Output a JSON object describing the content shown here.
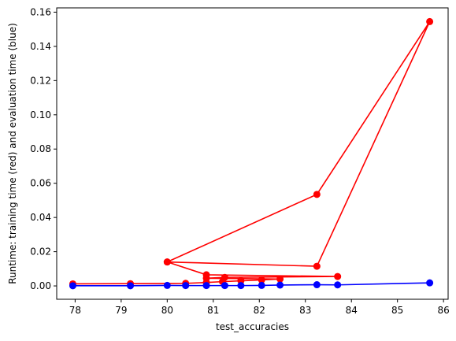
{
  "chart_data": {
    "type": "line",
    "xlabel": "test_accuracies",
    "ylabel": "Runtime: training time (red) and evaluation time (blue)",
    "xlim": [
      77.6,
      86.1
    ],
    "ylim": [
      -0.0078,
      0.1625
    ],
    "x_ticks": [
      78,
      79,
      80,
      81,
      82,
      83,
      84,
      85,
      86
    ],
    "x_tick_labels": [
      "78",
      "79",
      "80",
      "81",
      "82",
      "83",
      "84",
      "85",
      "86"
    ],
    "y_ticks": [
      0.0,
      0.02,
      0.04,
      0.06,
      0.08,
      0.1,
      0.12,
      0.14,
      0.16
    ],
    "y_tick_labels": [
      "0.00",
      "0.02",
      "0.04",
      "0.06",
      "0.08",
      "0.10",
      "0.12",
      "0.14",
      "0.16"
    ],
    "grid": false,
    "series": [
      {
        "color": "#ff0000",
        "x": [
          77.95,
          79.2,
          80.4,
          80.85,
          81.2,
          81.6,
          82.05,
          82.45,
          80.85,
          81.25,
          83.7,
          80.85,
          80.0,
          83.25,
          85.7,
          83.25,
          80.0
        ],
        "y": [
          0.0012,
          0.0013,
          0.0015,
          0.002,
          0.0025,
          0.003,
          0.0035,
          0.004,
          0.0045,
          0.005,
          0.0055,
          0.0065,
          0.014,
          0.0115,
          0.1545,
          0.0535,
          0.014
        ]
      },
      {
        "color": "#0000ff",
        "x": [
          77.95,
          79.2,
          80.0,
          80.4,
          80.85,
          81.25,
          81.6,
          82.05,
          82.45,
          83.25,
          83.7,
          85.7
        ],
        "y": [
          0.0001,
          0.0001,
          0.0003,
          0.0002,
          0.0002,
          0.0002,
          0.0002,
          0.0003,
          0.0005,
          0.0007,
          0.0006,
          0.0018
        ]
      }
    ]
  }
}
